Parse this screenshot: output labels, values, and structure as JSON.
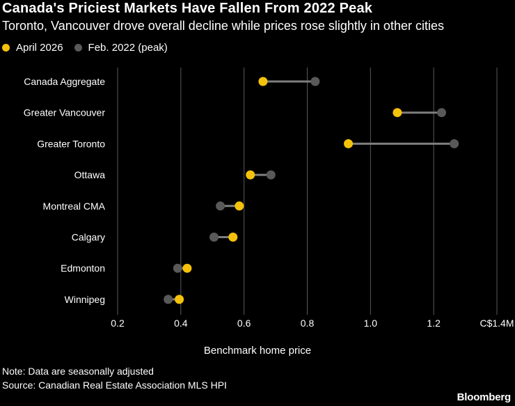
{
  "chart_data": {
    "type": "dot",
    "title": "Canada's Priciest Markets Have Fallen From 2022 Peak",
    "subtitle": "Toronto, Vancouver drove overall decline while prices rose slightly in other cities",
    "xlabel": "Benchmark home price",
    "x_unit": "C$ millions",
    "xlim": [
      0.2,
      1.4
    ],
    "x_ticks": [
      {
        "value": 0.2,
        "label": "0.2"
      },
      {
        "value": 0.4,
        "label": "0.4"
      },
      {
        "value": 0.6,
        "label": "0.6"
      },
      {
        "value": 0.8,
        "label": "0.8"
      },
      {
        "value": 1.0,
        "label": "1.0"
      },
      {
        "value": 1.2,
        "label": "1.2"
      },
      {
        "value": 1.4,
        "label": "C$1.4M"
      }
    ],
    "grid": true,
    "legend_position": "top-left",
    "categories": [
      "Canada Aggregate",
      "Greater Vancouver",
      "Greater Toronto",
      "Ottawa",
      "Montreal CMA",
      "Calgary",
      "Edmonton",
      "Winnipeg"
    ],
    "series": [
      {
        "name": "April 2026",
        "color": "#f5c20b",
        "values": [
          0.66,
          1.085,
          0.93,
          0.62,
          0.585,
          0.565,
          0.42,
          0.395
        ]
      },
      {
        "name": "Feb. 2022 (peak)",
        "color": "#595959",
        "values": [
          0.825,
          1.225,
          1.265,
          0.685,
          0.525,
          0.505,
          0.39,
          0.36
        ]
      }
    ]
  },
  "footer": {
    "note": "Note: Data are seasonally adjusted",
    "source": "Source: Canadian Real Estate Association MLS HPI",
    "brand": "Bloomberg"
  },
  "colors": {
    "background": "#000000",
    "gridline": "#5a5a5a",
    "connector": "#7f7f7f",
    "text": "#ffffff"
  }
}
